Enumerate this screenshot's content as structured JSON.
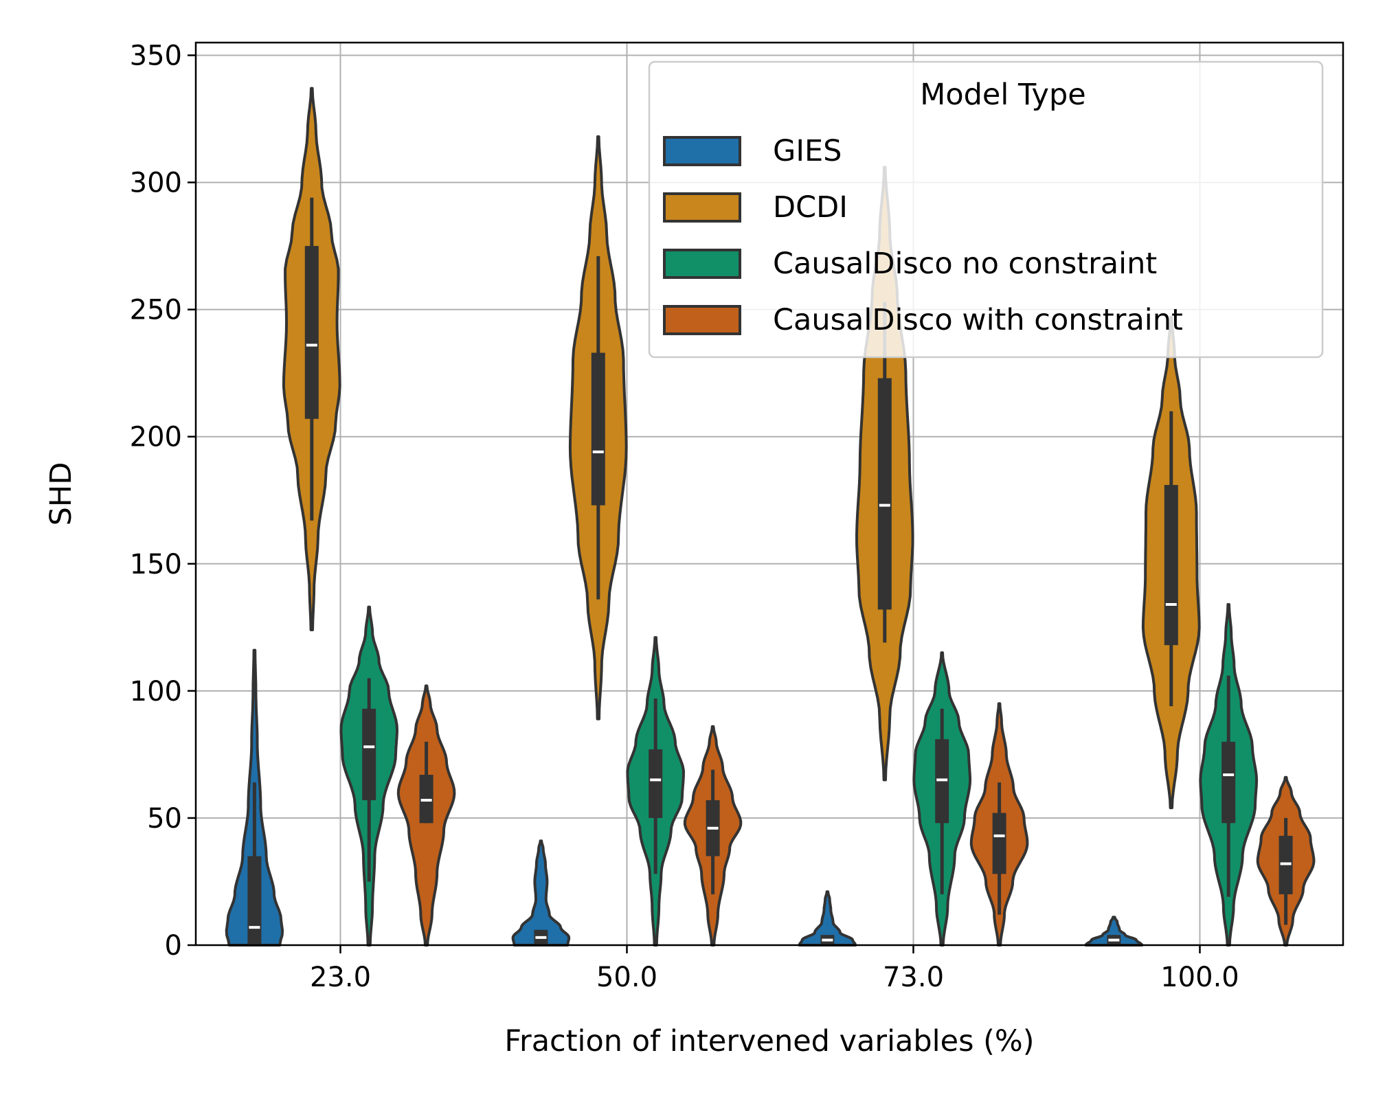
{
  "chart_data": {
    "type": "violin",
    "xlabel": "Fraction of intervened variables (%)",
    "ylabel": "SHD",
    "ylim": [
      0,
      355
    ],
    "yticks": [
      0,
      50,
      100,
      150,
      200,
      250,
      300,
      350
    ],
    "categories": [
      "23.0",
      "50.0",
      "73.0",
      "100.0"
    ],
    "grid": true,
    "legend": {
      "title": "Model Type",
      "position": "top-right"
    },
    "series": [
      {
        "name": "GIES",
        "color": "#1f6fa8",
        "violins": [
          {
            "min": 0,
            "max": 116,
            "median": 7,
            "q1": 0,
            "q3": 35,
            "whisker_low": 0,
            "whisker_high": 64,
            "profile": [
              [
                0,
                0.9
              ],
              [
                5,
                1.0
              ],
              [
                10,
                0.95
              ],
              [
                20,
                0.7
              ],
              [
                35,
                0.42
              ],
              [
                55,
                0.22
              ],
              [
                80,
                0.1
              ],
              [
                100,
                0.05
              ],
              [
                116,
                0.02
              ]
            ]
          },
          {
            "min": 0,
            "max": 41,
            "median": 3,
            "q1": 0,
            "q3": 6,
            "whisker_low": 0,
            "whisker_high": 6,
            "profile": [
              [
                0,
                0.95
              ],
              [
                3,
                1.0
              ],
              [
                7,
                0.7
              ],
              [
                12,
                0.3
              ],
              [
                18,
                0.18
              ],
              [
                25,
                0.22
              ],
              [
                32,
                0.16
              ],
              [
                38,
                0.08
              ],
              [
                41,
                0.02
              ]
            ]
          },
          {
            "min": 0,
            "max": 21,
            "median": 2,
            "q1": 0,
            "q3": 4,
            "whisker_low": 0,
            "whisker_high": 4,
            "profile": [
              [
                0,
                1.0
              ],
              [
                2,
                0.9
              ],
              [
                5,
                0.45
              ],
              [
                9,
                0.2
              ],
              [
                14,
                0.12
              ],
              [
                18,
                0.08
              ],
              [
                21,
                0.02
              ]
            ]
          },
          {
            "min": 0,
            "max": 11,
            "median": 2,
            "q1": 0,
            "q3": 4,
            "whisker_low": 0,
            "whisker_high": 4,
            "profile": [
              [
                0,
                1.0
              ],
              [
                2,
                0.8
              ],
              [
                4,
                0.4
              ],
              [
                6,
                0.2
              ],
              [
                9,
                0.12
              ],
              [
                11,
                0.03
              ]
            ]
          }
        ]
      },
      {
        "name": "DCDI",
        "color": "#c8861c",
        "violins": [
          {
            "min": 124,
            "max": 337,
            "median": 236,
            "q1": 207,
            "q3": 275,
            "whisker_low": 167,
            "whisker_high": 294,
            "profile": [
              [
                124,
                0.03
              ],
              [
                140,
                0.08
              ],
              [
                160,
                0.22
              ],
              [
                185,
                0.5
              ],
              [
                205,
                0.85
              ],
              [
                220,
                1.0
              ],
              [
                245,
                0.9
              ],
              [
                265,
                0.95
              ],
              [
                280,
                0.7
              ],
              [
                300,
                0.35
              ],
              [
                320,
                0.15
              ],
              [
                337,
                0.02
              ]
            ]
          },
          {
            "min": 89,
            "max": 318,
            "median": 194,
            "q1": 173,
            "q3": 233,
            "whisker_low": 136,
            "whisker_high": 271,
            "profile": [
              [
                89,
                0.03
              ],
              [
                110,
                0.12
              ],
              [
                135,
                0.38
              ],
              [
                160,
                0.72
              ],
              [
                195,
                1.0
              ],
              [
                230,
                0.9
              ],
              [
                255,
                0.6
              ],
              [
                280,
                0.3
              ],
              [
                300,
                0.12
              ],
              [
                318,
                0.02
              ]
            ]
          },
          {
            "min": 65,
            "max": 306,
            "median": 173,
            "q1": 132,
            "q3": 223,
            "whisker_low": 119,
            "whisker_high": 253,
            "profile": [
              [
                65,
                0.03
              ],
              [
                90,
                0.18
              ],
              [
                115,
                0.55
              ],
              [
                140,
                0.92
              ],
              [
                160,
                1.0
              ],
              [
                190,
                0.88
              ],
              [
                225,
                0.75
              ],
              [
                255,
                0.45
              ],
              [
                280,
                0.18
              ],
              [
                306,
                0.02
              ]
            ]
          },
          {
            "min": 54,
            "max": 247,
            "median": 134,
            "q1": 118,
            "q3": 181,
            "whisker_low": 94,
            "whisker_high": 210,
            "profile": [
              [
                54,
                0.03
              ],
              [
                75,
                0.22
              ],
              [
                100,
                0.6
              ],
              [
                125,
                1.0
              ],
              [
                145,
                0.92
              ],
              [
                170,
                0.9
              ],
              [
                195,
                0.65
              ],
              [
                215,
                0.32
              ],
              [
                232,
                0.12
              ],
              [
                247,
                0.02
              ]
            ]
          }
        ]
      },
      {
        "name": "CausalDisco no constraint",
        "color": "#119068",
        "violins": [
          {
            "min": 0,
            "max": 133,
            "median": 78,
            "q1": 57,
            "q3": 93,
            "whisker_low": 25,
            "whisker_high": 105,
            "profile": [
              [
                0,
                0.04
              ],
              [
                15,
                0.12
              ],
              [
                35,
                0.2
              ],
              [
                55,
                0.5
              ],
              [
                75,
                0.95
              ],
              [
                85,
                1.0
              ],
              [
                100,
                0.7
              ],
              [
                112,
                0.35
              ],
              [
                123,
                0.12
              ],
              [
                133,
                0.02
              ]
            ]
          },
          {
            "min": 0,
            "max": 121,
            "median": 65,
            "q1": 50,
            "q3": 77,
            "whisker_low": 28,
            "whisker_high": 97,
            "profile": [
              [
                0,
                0.04
              ],
              [
                15,
                0.12
              ],
              [
                28,
                0.2
              ],
              [
                45,
                0.55
              ],
              [
                58,
                0.95
              ],
              [
                68,
                1.0
              ],
              [
                80,
                0.7
              ],
              [
                95,
                0.3
              ],
              [
                108,
                0.12
              ],
              [
                121,
                0.02
              ]
            ]
          },
          {
            "min": 0,
            "max": 115,
            "median": 65,
            "q1": 48,
            "q3": 81,
            "whisker_low": 20,
            "whisker_high": 93,
            "profile": [
              [
                0,
                0.04
              ],
              [
                15,
                0.2
              ],
              [
                35,
                0.45
              ],
              [
                50,
                0.8
              ],
              [
                65,
                1.0
              ],
              [
                75,
                0.95
              ],
              [
                88,
                0.6
              ],
              [
                100,
                0.25
              ],
              [
                115,
                0.02
              ]
            ]
          },
          {
            "min": 0,
            "max": 134,
            "median": 67,
            "q1": 48,
            "q3": 80,
            "whisker_low": 19,
            "whisker_high": 106,
            "profile": [
              [
                0,
                0.04
              ],
              [
                15,
                0.18
              ],
              [
                35,
                0.5
              ],
              [
                55,
                0.95
              ],
              [
                65,
                1.0
              ],
              [
                78,
                0.85
              ],
              [
                95,
                0.45
              ],
              [
                110,
                0.2
              ],
              [
                122,
                0.1
              ],
              [
                134,
                0.02
              ]
            ]
          }
        ]
      },
      {
        "name": "CausalDisco with constraint",
        "color": "#c0601b",
        "violins": [
          {
            "min": 0,
            "max": 102,
            "median": 57,
            "q1": 48,
            "q3": 67,
            "whisker_low": 48,
            "whisker_high": 80,
            "profile": [
              [
                0,
                0.04
              ],
              [
                12,
                0.2
              ],
              [
                28,
                0.38
              ],
              [
                45,
                0.62
              ],
              [
                60,
                1.0
              ],
              [
                72,
                0.72
              ],
              [
                85,
                0.38
              ],
              [
                95,
                0.14
              ],
              [
                102,
                0.02
              ]
            ]
          },
          {
            "min": 0,
            "max": 86,
            "median": 46,
            "q1": 35,
            "q3": 57,
            "whisker_low": 20,
            "whisker_high": 69,
            "profile": [
              [
                0,
                0.04
              ],
              [
                12,
                0.18
              ],
              [
                28,
                0.4
              ],
              [
                38,
                0.6
              ],
              [
                48,
                1.0
              ],
              [
                58,
                0.7
              ],
              [
                70,
                0.35
              ],
              [
                80,
                0.12
              ],
              [
                86,
                0.02
              ]
            ]
          },
          {
            "min": 0,
            "max": 95,
            "median": 43,
            "q1": 28,
            "q3": 52,
            "whisker_low": 12,
            "whisker_high": 64,
            "profile": [
              [
                0,
                0.04
              ],
              [
                12,
                0.18
              ],
              [
                25,
                0.48
              ],
              [
                40,
                1.0
              ],
              [
                50,
                0.88
              ],
              [
                62,
                0.5
              ],
              [
                75,
                0.25
              ],
              [
                88,
                0.08
              ],
              [
                95,
                0.02
              ]
            ]
          },
          {
            "min": 0,
            "max": 66,
            "median": 32,
            "q1": 20,
            "q3": 43,
            "whisker_low": 8,
            "whisker_high": 50,
            "profile": [
              [
                0,
                0.04
              ],
              [
                10,
                0.25
              ],
              [
                22,
                0.62
              ],
              [
                33,
                1.0
              ],
              [
                42,
                0.88
              ],
              [
                52,
                0.5
              ],
              [
                60,
                0.2
              ],
              [
                66,
                0.02
              ]
            ]
          }
        ]
      }
    ]
  }
}
